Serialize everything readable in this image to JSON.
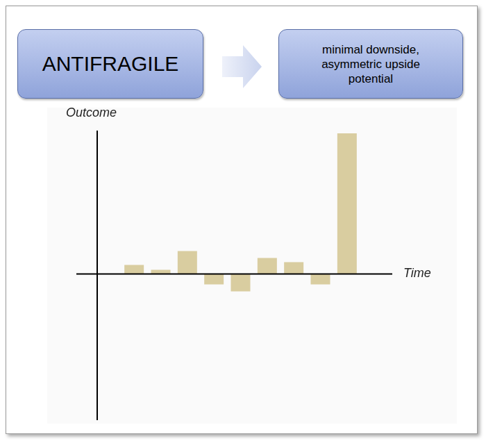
{
  "header": {
    "title": "ANTIFRAGILE",
    "description": "minimal downside, asymmetric upside potential"
  },
  "chart_data": {
    "type": "bar",
    "x_label": "Time",
    "y_label": "Outcome",
    "categories": [
      null,
      null,
      null,
      null,
      null,
      null,
      null,
      null,
      null
    ],
    "values": [
      1.3,
      0.6,
      3.3,
      -1.5,
      -2.5,
      2.3,
      1.7,
      -1.5,
      20.2
    ],
    "color": "#d9cda0",
    "ylim": [
      -21,
      20.6
    ],
    "yticks": [],
    "grid": false,
    "tick_labels": false
  }
}
